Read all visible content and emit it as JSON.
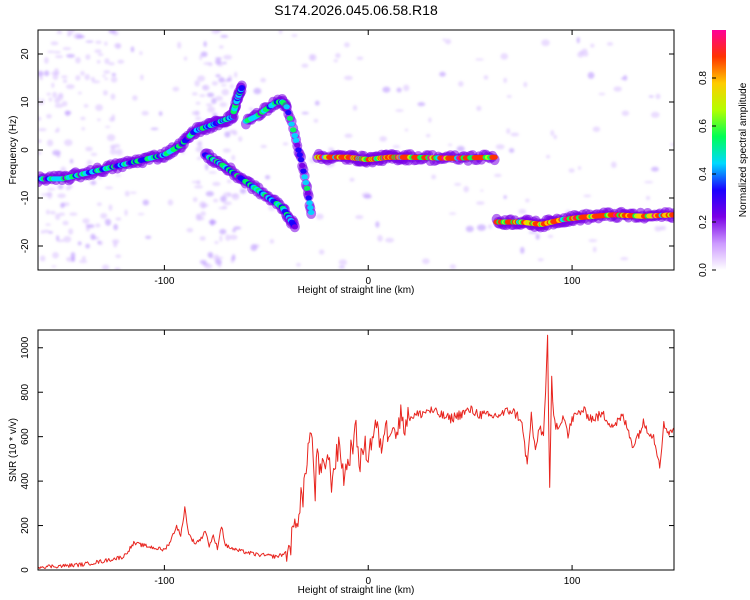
{
  "title": "S174.2026.045.06.58.R18",
  "chart_data": [
    {
      "type": "heatmap",
      "xlabel": "Height of straight line (km)",
      "ylabel": "Frequency (Hz)",
      "xlim": [
        -162,
        150
      ],
      "ylim": [
        -25,
        25
      ],
      "xticks": [
        -100,
        0,
        100
      ],
      "yticks": [
        -20,
        -10,
        0,
        10,
        20
      ],
      "xtick_labels": [
        "-100",
        "0",
        "100"
      ],
      "ytick_labels": [
        "-20",
        "-10",
        "0",
        "10",
        "20"
      ],
      "grid": false,
      "colorbar": {
        "label": "Normalized spectral amplitude",
        "range": [
          0,
          1
        ],
        "ticks": [
          0.0,
          0.2,
          0.4,
          0.6,
          0.8
        ],
        "tick_labels": [
          "0.0",
          "0.2",
          "0.4",
          "0.6",
          "0.8"
        ],
        "colors": [
          "#ffffff",
          "#cc99ff",
          "#7a00e6",
          "#1a00ff",
          "#00d9ff",
          "#00ff55",
          "#b3ff00",
          "#ffcc00",
          "#ff3300",
          "#ff0099"
        ]
      },
      "ridges": [
        {
          "name": "main-ridge-left",
          "x": [
            -162,
            -150,
            -140,
            -130,
            -120,
            -110,
            -100,
            -92,
            -85,
            -78,
            -72,
            -66
          ],
          "y": [
            -6,
            -6,
            -5,
            -4,
            -3,
            -2,
            -1,
            1,
            4,
            5,
            6,
            7
          ]
        },
        {
          "name": "upper-arc",
          "x": [
            -60,
            -55,
            -50,
            -45,
            -42,
            -40
          ],
          "y": [
            6,
            7,
            8.5,
            10,
            10,
            9
          ]
        },
        {
          "name": "upper-spike",
          "x": [
            -66,
            -64,
            -62
          ],
          "y": [
            8,
            11,
            13
          ]
        },
        {
          "name": "falling-branch",
          "x": [
            -40,
            -36,
            -33,
            -30,
            -28
          ],
          "y": [
            9,
            3,
            -2,
            -8,
            -13
          ]
        },
        {
          "name": "lower-streak",
          "x": [
            -80,
            -72,
            -62,
            -52,
            -42,
            -36
          ],
          "y": [
            -1,
            -3,
            -6,
            -9,
            -12,
            -16
          ]
        },
        {
          "name": "mid-ridge",
          "x": [
            -25,
            -10,
            0,
            10,
            20,
            40,
            62
          ],
          "y": [
            -1.5,
            -1.5,
            -2,
            -1.5,
            -1.5,
            -1.7,
            -1.5
          ]
        },
        {
          "name": "lower-ridge",
          "x": [
            63,
            75,
            85,
            95,
            105,
            120,
            135,
            150
          ],
          "y": [
            -15,
            -15,
            -15.5,
            -14.5,
            -14,
            -13.5,
            -13.8,
            -13.5
          ]
        }
      ]
    },
    {
      "type": "line",
      "xlabel": "Height of straight line (km)",
      "ylabel": "SNR (10 * v/v)",
      "xlim": [
        -162,
        150
      ],
      "ylim": [
        0,
        1080
      ],
      "xticks": [
        -100,
        0,
        100
      ],
      "yticks": [
        0,
        200,
        400,
        600,
        800,
        1000
      ],
      "xtick_labels": [
        "-100",
        "0",
        "100"
      ],
      "ytick_labels": [
        "0",
        "200",
        "400",
        "600",
        "800",
        "1000"
      ],
      "grid": false,
      "series": [
        {
          "name": "SNR",
          "color": "#e8251f",
          "x": [
            -162,
            -150,
            -140,
            -130,
            -120,
            -115,
            -110,
            -105,
            -100,
            -97,
            -94,
            -92,
            -90,
            -88,
            -85,
            -82,
            -80,
            -78,
            -76,
            -74,
            -72,
            -70,
            -65,
            -60,
            -55,
            -50,
            -45,
            -42,
            -40,
            -38,
            -36,
            -34,
            -33,
            -32,
            -31,
            -30,
            -28,
            -26,
            -25,
            -24,
            -22,
            -20,
            -18,
            -16,
            -14,
            -12,
            -10,
            -8,
            -6,
            -4,
            -2,
            0,
            2,
            4,
            6,
            8,
            10,
            12,
            14,
            16,
            18,
            20,
            25,
            30,
            35,
            40,
            45,
            50,
            55,
            60,
            65,
            70,
            75,
            78,
            80,
            82,
            84,
            86,
            88,
            89,
            90,
            91,
            92,
            94,
            96,
            98,
            100,
            105,
            110,
            115,
            120,
            125,
            130,
            135,
            140,
            143,
            145,
            148,
            150
          ],
          "y": [
            15,
            18,
            25,
            40,
            60,
            120,
            110,
            100,
            90,
            130,
            200,
            150,
            280,
            160,
            120,
            140,
            180,
            110,
            150,
            100,
            200,
            110,
            90,
            80,
            70,
            65,
            60,
            70,
            80,
            120,
            200,
            260,
            340,
            300,
            420,
            520,
            630,
            350,
            560,
            420,
            460,
            520,
            400,
            500,
            560,
            420,
            480,
            560,
            620,
            480,
            560,
            520,
            600,
            660,
            540,
            640,
            620,
            680,
            600,
            700,
            660,
            690,
            700,
            720,
            700,
            680,
            700,
            720,
            700,
            690,
            700,
            720,
            680,
            470,
            700,
            520,
            650,
            600,
            1040,
            350,
            850,
            680,
            650,
            660,
            700,
            600,
            680,
            720,
            680,
            700,
            650,
            690,
            560,
            660,
            600,
            480,
            650,
            620,
            640
          ]
        }
      ]
    }
  ]
}
